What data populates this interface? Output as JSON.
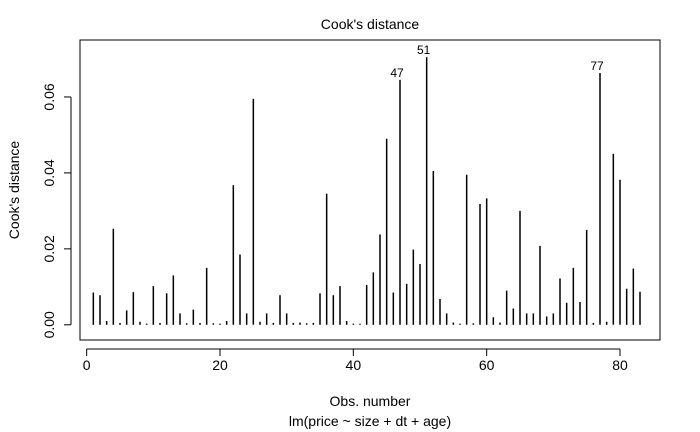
{
  "chart_data": {
    "type": "bar",
    "title": "Cook's distance",
    "xlabel": "Obs. number",
    "subtitle": "lm(price ~ size + dt + age)",
    "ylabel": "Cook's distance",
    "xlim": [
      -1,
      86
    ],
    "ylim": [
      -0.004,
      0.075
    ],
    "x_ticks": [
      0,
      20,
      40,
      60,
      80
    ],
    "x_tick_labels": [
      "0",
      "20",
      "40",
      "60",
      "80"
    ],
    "y_ticks": [
      0.0,
      0.02,
      0.04,
      0.06
    ],
    "y_tick_labels": [
      "0.00",
      "0.02",
      "0.04",
      "0.06"
    ],
    "x": [
      1,
      2,
      3,
      4,
      5,
      6,
      7,
      8,
      9,
      10,
      11,
      12,
      13,
      14,
      15,
      16,
      17,
      18,
      19,
      20,
      21,
      22,
      23,
      24,
      25,
      26,
      27,
      28,
      29,
      30,
      31,
      32,
      33,
      34,
      35,
      36,
      37,
      38,
      39,
      40,
      41,
      42,
      43,
      44,
      45,
      46,
      47,
      48,
      49,
      50,
      51,
      52,
      53,
      54,
      55,
      56,
      57,
      58,
      59,
      60,
      61,
      62,
      63,
      64,
      65,
      66,
      67,
      68,
      69,
      70,
      71,
      72,
      73,
      74,
      75,
      76,
      77,
      78,
      79,
      80,
      81,
      82,
      83
    ],
    "values": [
      0.0085,
      0.0078,
      0.001,
      0.0253,
      0.0005,
      0.0038,
      0.0086,
      0.0008,
      0.0003,
      0.0102,
      0.0005,
      0.0083,
      0.013,
      0.003,
      0.0004,
      0.004,
      0.0005,
      0.015,
      0.0004,
      0.0003,
      0.001,
      0.0368,
      0.0185,
      0.003,
      0.0595,
      0.0008,
      0.003,
      0.0005,
      0.0078,
      0.003,
      0.0005,
      0.0006,
      0.0004,
      0.0005,
      0.0083,
      0.0345,
      0.0078,
      0.0102,
      0.001,
      0.0003,
      0.0003,
      0.0105,
      0.0138,
      0.0238,
      0.049,
      0.0085,
      0.0645,
      0.0108,
      0.0198,
      0.016,
      0.0705,
      0.0405,
      0.0068,
      0.003,
      0.0006,
      0.0003,
      0.0395,
      0.0004,
      0.0318,
      0.0333,
      0.002,
      0.0006,
      0.009,
      0.0043,
      0.03,
      0.003,
      0.003,
      0.0208,
      0.0022,
      0.003,
      0.0122,
      0.0058,
      0.015,
      0.006,
      0.025,
      0.0005,
      0.0663,
      0.0008,
      0.045,
      0.0382,
      0.0095,
      0.0148,
      0.0087
    ],
    "labeled_points": [
      {
        "x": 47,
        "label": "47"
      },
      {
        "x": 51,
        "label": "51"
      },
      {
        "x": 77,
        "label": "77"
      }
    ],
    "grid": false,
    "legend": "none",
    "color": "#000000"
  }
}
